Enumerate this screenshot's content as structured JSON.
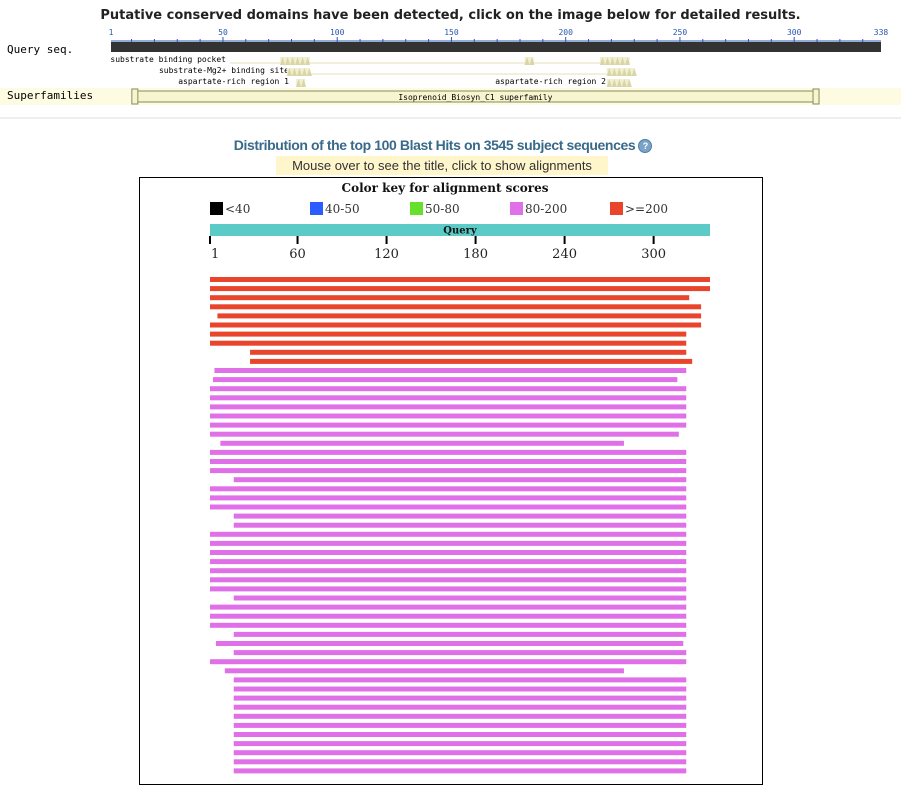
{
  "cdd": {
    "heading": "Putative conserved domains have been detected, click on the image below for detailed results.",
    "query_label": "Query seq.",
    "superfamilies_label": "Superfamilies",
    "scale_ticks": [
      "1",
      "50",
      "100",
      "150",
      "200",
      "250",
      "300",
      "338"
    ],
    "query_length": 338,
    "features": [
      {
        "label": "substrate binding pocket",
        "ranges": [
          [
            75,
            88
          ],
          [
            182,
            186
          ],
          [
            215,
            228
          ]
        ]
      },
      {
        "label": "substrate-Mg2+ binding site",
        "ranges": [
          [
            78,
            88
          ],
          [
            218,
            230
          ]
        ]
      },
      {
        "label": "aspartate-rich region 1",
        "ranges": [
          [
            82,
            86
          ]
        ]
      },
      {
        "label": "aspartate-rich region 2",
        "ranges": [
          [
            218,
            228
          ]
        ]
      }
    ],
    "superfamily": {
      "label": "Isoprenoid_Biosyn_C1 superfamily",
      "start": 11,
      "end": 310
    }
  },
  "distribution": {
    "title": "Distribution of the top 100 Blast Hits on 3545 subject sequences",
    "help_icon": "help-icon",
    "hint": "Mouse over to see the title, click to show alignments",
    "color_key_title": "Color key for alignment scores",
    "color_key": [
      {
        "label": "<40",
        "color": "#000000"
      },
      {
        "label": "40-50",
        "color": "#2b5cff"
      },
      {
        "label": "50-80",
        "color": "#66e02a"
      },
      {
        "label": "80-200",
        "color": "#e070e8"
      },
      {
        "label": ">=200",
        "color": "#e8452c"
      }
    ],
    "query_bar_label": "Query",
    "query_bar_color": "#5ccbc8",
    "query_length": 338,
    "ruler_ticks": [
      "1",
      "60",
      "120",
      "180",
      "240",
      "300"
    ],
    "hits": [
      {
        "start": 1,
        "end": 338,
        "score": ">=200"
      },
      {
        "start": 1,
        "end": 338,
        "score": ">=200"
      },
      {
        "start": 1,
        "end": 324,
        "score": ">=200"
      },
      {
        "start": 1,
        "end": 332,
        "score": ">=200"
      },
      {
        "start": 6,
        "end": 332,
        "score": ">=200"
      },
      {
        "start": 1,
        "end": 332,
        "score": ">=200"
      },
      {
        "start": 1,
        "end": 322,
        "score": ">=200"
      },
      {
        "start": 1,
        "end": 322,
        "score": ">=200"
      },
      {
        "start": 28,
        "end": 322,
        "score": ">=200"
      },
      {
        "start": 28,
        "end": 326,
        "score": ">=200"
      },
      {
        "start": 4,
        "end": 322,
        "score": "80-200"
      },
      {
        "start": 3,
        "end": 316,
        "score": "80-200"
      },
      {
        "start": 1,
        "end": 322,
        "score": "80-200"
      },
      {
        "start": 1,
        "end": 322,
        "score": "80-200"
      },
      {
        "start": 1,
        "end": 322,
        "score": "80-200"
      },
      {
        "start": 1,
        "end": 322,
        "score": "80-200"
      },
      {
        "start": 1,
        "end": 322,
        "score": "80-200"
      },
      {
        "start": 1,
        "end": 317,
        "score": "80-200"
      },
      {
        "start": 8,
        "end": 280,
        "score": "80-200"
      },
      {
        "start": 1,
        "end": 322,
        "score": "80-200"
      },
      {
        "start": 1,
        "end": 322,
        "score": "80-200"
      },
      {
        "start": 1,
        "end": 322,
        "score": "80-200"
      },
      {
        "start": 17,
        "end": 322,
        "score": "80-200"
      },
      {
        "start": 1,
        "end": 322,
        "score": "80-200"
      },
      {
        "start": 1,
        "end": 322,
        "score": "80-200"
      },
      {
        "start": 1,
        "end": 322,
        "score": "80-200"
      },
      {
        "start": 17,
        "end": 322,
        "score": "80-200"
      },
      {
        "start": 17,
        "end": 322,
        "score": "80-200"
      },
      {
        "start": 1,
        "end": 322,
        "score": "80-200"
      },
      {
        "start": 1,
        "end": 322,
        "score": "80-200"
      },
      {
        "start": 1,
        "end": 322,
        "score": "80-200"
      },
      {
        "start": 1,
        "end": 322,
        "score": "80-200"
      },
      {
        "start": 1,
        "end": 322,
        "score": "80-200"
      },
      {
        "start": 1,
        "end": 322,
        "score": "80-200"
      },
      {
        "start": 1,
        "end": 322,
        "score": "80-200"
      },
      {
        "start": 17,
        "end": 322,
        "score": "80-200"
      },
      {
        "start": 1,
        "end": 322,
        "score": "80-200"
      },
      {
        "start": 1,
        "end": 322,
        "score": "80-200"
      },
      {
        "start": 1,
        "end": 322,
        "score": "80-200"
      },
      {
        "start": 17,
        "end": 322,
        "score": "80-200"
      },
      {
        "start": 5,
        "end": 320,
        "score": "80-200"
      },
      {
        "start": 17,
        "end": 322,
        "score": "80-200"
      },
      {
        "start": 1,
        "end": 322,
        "score": "80-200"
      },
      {
        "start": 11,
        "end": 280,
        "score": "80-200"
      },
      {
        "start": 17,
        "end": 322,
        "score": "80-200"
      },
      {
        "start": 17,
        "end": 322,
        "score": "80-200"
      },
      {
        "start": 17,
        "end": 322,
        "score": "80-200"
      },
      {
        "start": 17,
        "end": 322,
        "score": "80-200"
      },
      {
        "start": 17,
        "end": 322,
        "score": "80-200"
      },
      {
        "start": 17,
        "end": 322,
        "score": "80-200"
      },
      {
        "start": 17,
        "end": 322,
        "score": "80-200"
      },
      {
        "start": 17,
        "end": 322,
        "score": "80-200"
      },
      {
        "start": 17,
        "end": 322,
        "score": "80-200"
      },
      {
        "start": 17,
        "end": 322,
        "score": "80-200"
      },
      {
        "start": 17,
        "end": 322,
        "score": "80-200"
      }
    ]
  }
}
